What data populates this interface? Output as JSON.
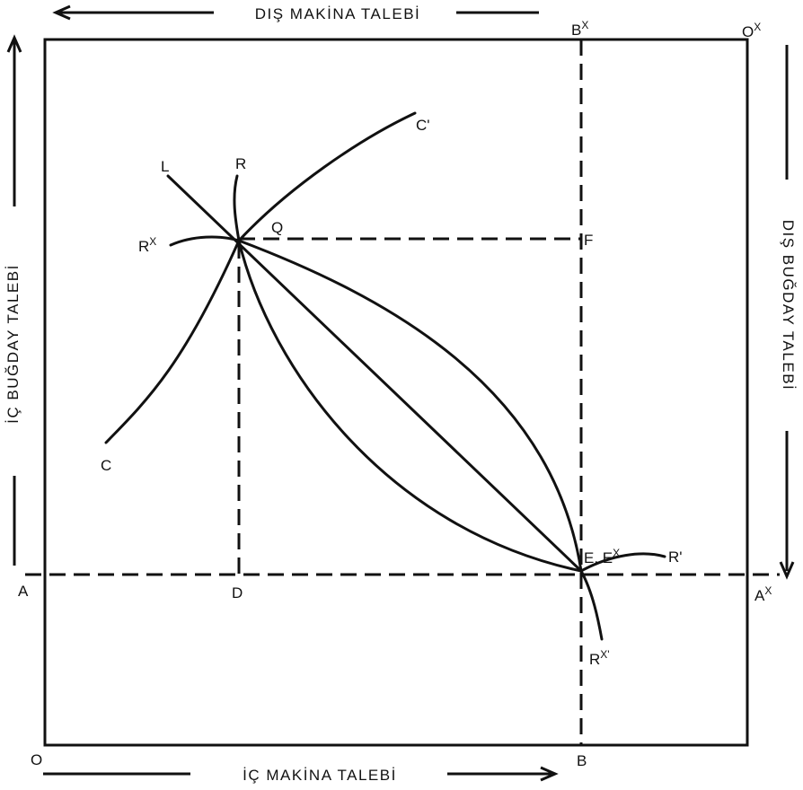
{
  "axes": {
    "top": "DIŞ MAKİNA TALEBİ",
    "bottom": "İÇ MAKİNA TALEBİ",
    "left": "İÇ BUĞDAY TALEBİ",
    "right": "DIŞ BUĞDAY TALEBİ"
  },
  "points": {
    "O": "O",
    "O_x": "O",
    "A": "A",
    "A_x": "A",
    "B": "B",
    "B_x": "B",
    "D": "D",
    "F": "F",
    "Q": "Q",
    "E": "E, E"
  },
  "curves": {
    "C": "C",
    "C_prime": "C'",
    "L": "L",
    "R": "R",
    "R_x": "R",
    "R_prime": "R'",
    "R_x_prime": "R"
  },
  "superscripts": {
    "x": "X",
    "x_prime": "X'"
  }
}
